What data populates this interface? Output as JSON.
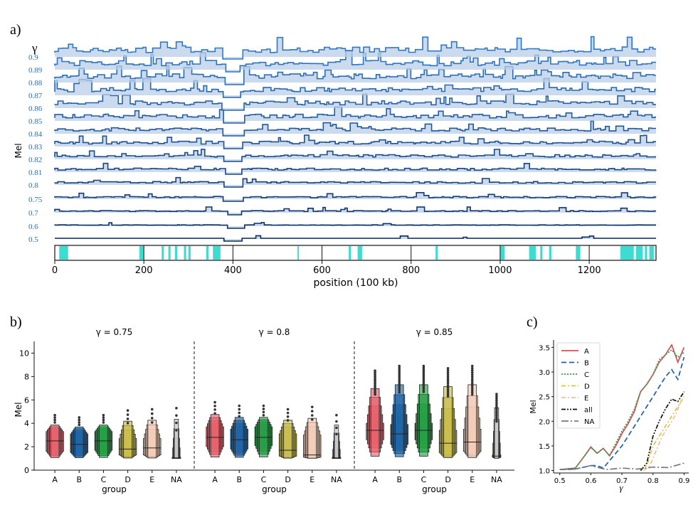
{
  "panels": {
    "a": {
      "label": "a)",
      "ylabel": "Mel",
      "gamma_header": "γ",
      "gammas": [
        "0.9",
        "0.89",
        "0.88",
        "0.87",
        "0.86",
        "0.85",
        "0.84",
        "0.83",
        "0.82",
        "0.81",
        "0.8",
        "0.75",
        "0.7",
        "0.6",
        "0.5"
      ],
      "xlabel": "position (100 kb)",
      "xticks": [
        0,
        200,
        400,
        600,
        800,
        1000,
        1200
      ],
      "xlim": [
        0,
        1350
      ],
      "track_segments": [
        [
          10,
          30
        ],
        [
          190,
          200
        ],
        [
          240,
          245
        ],
        [
          255,
          260
        ],
        [
          270,
          275
        ],
        [
          290,
          295
        ],
        [
          300,
          305
        ],
        [
          340,
          345
        ],
        [
          355,
          372
        ],
        [
          545,
          548
        ],
        [
          660,
          665
        ],
        [
          680,
          690
        ],
        [
          855,
          860
        ],
        [
          1000,
          1010
        ],
        [
          1065,
          1080
        ],
        [
          1090,
          1095
        ],
        [
          1110,
          1115
        ],
        [
          1170,
          1180
        ],
        [
          1270,
          1300
        ],
        [
          1305,
          1320
        ],
        [
          1325,
          1330
        ],
        [
          1335,
          1345
        ]
      ],
      "colors": {
        "line_top": "#2f79c9",
        "line_bottom": "#0b2a5e",
        "fill": "#b9cde6",
        "track": "#3ddcd0"
      }
    },
    "b": {
      "label": "b)",
      "ylabel": "Mel",
      "xlabel": "group",
      "yticks": [
        0,
        2,
        4,
        6,
        8,
        10
      ],
      "ylim": [
        0,
        11
      ],
      "categories": [
        "A",
        "B",
        "C",
        "D",
        "E",
        "NA"
      ],
      "colors": {
        "A": "#e8636e",
        "B": "#2166a6",
        "C": "#27a046",
        "D": "#c9bf4e",
        "E": "#f2cdb8",
        "NA": "#c7c7c7"
      },
      "subplots": [
        {
          "title": "γ = 0.75",
          "medians": [
            2.5,
            2.2,
            2.5,
            1.8,
            1.9,
            1.05
          ],
          "q1": [
            1.6,
            1.5,
            1.7,
            1.3,
            1.3,
            1.0
          ],
          "q3": [
            3.3,
            3.1,
            3.3,
            2.7,
            2.7,
            1.1
          ],
          "max": [
            4.7,
            4.5,
            4.7,
            5.1,
            5.2,
            5.3
          ]
        },
        {
          "title": "γ = 0.8",
          "medians": [
            2.8,
            2.6,
            2.8,
            1.7,
            1.3,
            1.05
          ],
          "q1": [
            2.0,
            1.8,
            2.1,
            1.2,
            1.1,
            1.0
          ],
          "q3": [
            3.7,
            3.5,
            3.7,
            3.1,
            3.0,
            1.1
          ],
          "max": [
            5.8,
            5.5,
            5.5,
            5.2,
            5.4,
            4.7
          ]
        },
        {
          "title": "γ = 0.85",
          "medians": [
            3.4,
            3.1,
            3.4,
            2.3,
            2.4,
            1.2
          ],
          "q1": [
            2.6,
            2.2,
            2.6,
            1.5,
            1.6,
            1.1
          ],
          "q3": [
            4.0,
            3.9,
            4.0,
            3.4,
            3.5,
            1.3
          ],
          "max": [
            8.5,
            8.9,
            8.9,
            8.7,
            8.9,
            6.5
          ]
        }
      ]
    },
    "c": {
      "label": "c)",
      "ylabel": "Mel",
      "xlabel": "γ",
      "xticks": [
        0.5,
        0.6,
        0.7,
        0.8,
        0.9
      ],
      "yticks": [
        1.0,
        1.5,
        2.0,
        2.5,
        3.0,
        3.5
      ],
      "xlim": [
        0.48,
        0.915
      ],
      "ylim": [
        0.95,
        3.65
      ],
      "series": [
        {
          "name": "A",
          "color": "#e34a56",
          "dash": "",
          "x": [
            0.5,
            0.55,
            0.58,
            0.6,
            0.62,
            0.64,
            0.66,
            0.68,
            0.7,
            0.72,
            0.74,
            0.76,
            0.78,
            0.8,
            0.82,
            0.84,
            0.86,
            0.88,
            0.9
          ],
          "y": [
            1.02,
            1.05,
            1.3,
            1.48,
            1.35,
            1.45,
            1.3,
            1.5,
            1.75,
            1.95,
            2.2,
            2.6,
            2.75,
            2.95,
            3.2,
            3.35,
            3.55,
            3.2,
            3.5
          ]
        },
        {
          "name": "B",
          "color": "#1f5fa0",
          "dash": "7,4",
          "x": [
            0.5,
            0.55,
            0.6,
            0.62,
            0.64,
            0.66,
            0.68,
            0.7,
            0.72,
            0.74,
            0.76,
            0.78,
            0.8,
            0.82,
            0.84,
            0.86,
            0.88,
            0.9
          ],
          "y": [
            1.02,
            1.03,
            1.1,
            1.1,
            1.05,
            1.2,
            1.35,
            1.5,
            1.7,
            1.9,
            2.1,
            2.3,
            2.5,
            2.7,
            2.9,
            3.05,
            2.85,
            3.3
          ]
        },
        {
          "name": "C",
          "color": "#2ca24a",
          "dash": "2,2",
          "x": [
            0.5,
            0.55,
            0.58,
            0.6,
            0.62,
            0.64,
            0.66,
            0.68,
            0.7,
            0.72,
            0.74,
            0.76,
            0.78,
            0.8,
            0.82,
            0.84,
            0.86,
            0.88,
            0.9
          ],
          "y": [
            1.02,
            1.05,
            1.3,
            1.47,
            1.35,
            1.45,
            1.3,
            1.55,
            1.8,
            2.0,
            2.25,
            2.6,
            2.75,
            2.95,
            3.25,
            3.35,
            3.45,
            3.3,
            3.4
          ]
        },
        {
          "name": "D",
          "color": "#d8c83a",
          "dash": "6,3,2,3",
          "x": [
            0.76,
            0.78,
            0.8,
            0.82,
            0.84,
            0.86,
            0.88,
            0.9
          ],
          "y": [
            1.0,
            1.1,
            1.5,
            1.7,
            1.9,
            2.1,
            2.3,
            2.5
          ]
        },
        {
          "name": "E",
          "color": "#f0bca2",
          "dash": "6,3,2,3",
          "x": [
            0.77,
            0.79,
            0.81,
            0.83,
            0.85,
            0.87,
            0.89
          ],
          "y": [
            1.0,
            1.1,
            1.4,
            1.7,
            1.9,
            2.1,
            2.4
          ]
        },
        {
          "name": "all",
          "color": "#111111",
          "dash": "6,2,2,2,2,2",
          "x": [
            0.76,
            0.78,
            0.8,
            0.82,
            0.84,
            0.86,
            0.88,
            0.9
          ],
          "y": [
            1.0,
            1.15,
            1.7,
            2.0,
            2.25,
            2.45,
            2.4,
            2.6
          ]
        },
        {
          "name": "NA",
          "color": "#777788",
          "dash": "10,3,2,3",
          "x": [
            0.5,
            0.55,
            0.6,
            0.65,
            0.7,
            0.75,
            0.8,
            0.85,
            0.9
          ],
          "y": [
            1.02,
            1.03,
            1.1,
            1.02,
            1.05,
            1.03,
            1.07,
            1.06,
            1.15
          ]
        }
      ]
    }
  }
}
